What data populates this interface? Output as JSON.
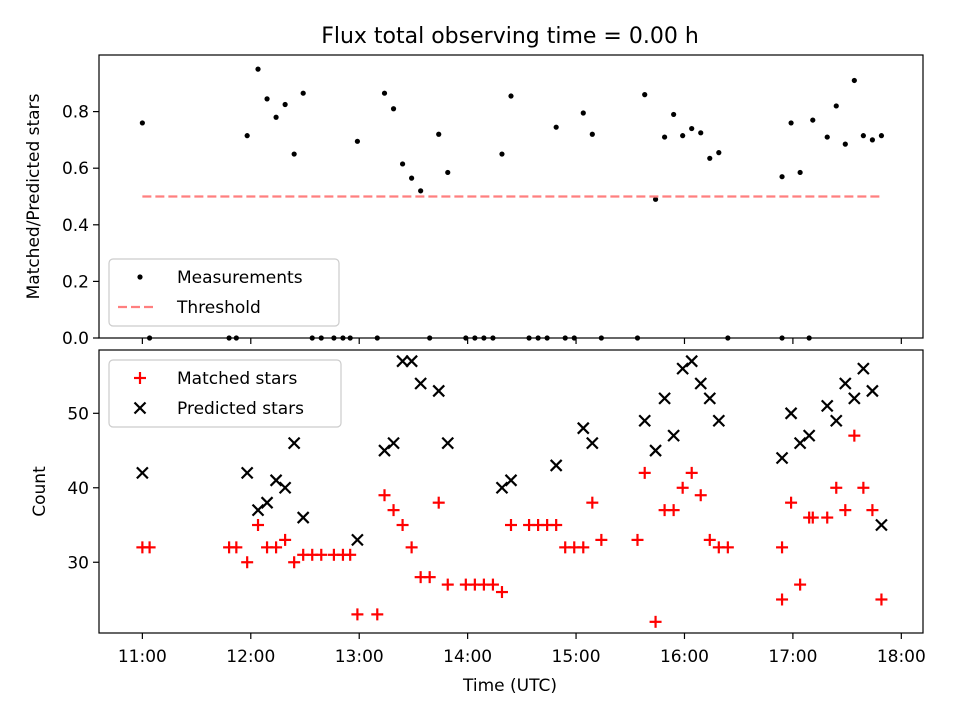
{
  "chart_data": {
    "title": "Flux total observing time = 0.00 h",
    "colors": {
      "measurements": "#000000",
      "threshold": "#ff7f7f",
      "matched": "#ff0000",
      "predicted": "#000000"
    },
    "x_ticks": [
      "11:00",
      "12:00",
      "13:00",
      "14:00",
      "15:00",
      "16:00",
      "17:00",
      "18:00"
    ],
    "xlabel": "Time (UTC)",
    "panels": [
      {
        "type": "scatter",
        "ylabel": "Matched/Predicted stars",
        "ylim": [
          0,
          1.0
        ],
        "y_ticks": [
          "0.0",
          "0.2",
          "0.4",
          "0.6",
          "0.8"
        ],
        "legend_position": "lower-left",
        "series": [
          {
            "name": "Measurements",
            "marker": "dot",
            "points": [
              [
                "11:00",
                0.76
              ],
              [
                "11:04",
                0.0
              ],
              [
                "11:48",
                0.0
              ],
              [
                "11:52",
                0.0
              ],
              [
                "11:58",
                0.715
              ],
              [
                "12:04",
                0.95
              ],
              [
                "12:09",
                0.845
              ],
              [
                "12:14",
                0.78
              ],
              [
                "12:19",
                0.825
              ],
              [
                "12:24",
                0.65
              ],
              [
                "12:29",
                0.865
              ],
              [
                "12:34",
                0.0
              ],
              [
                "12:39",
                0.0
              ],
              [
                "12:46",
                0.0
              ],
              [
                "12:51",
                0.0
              ],
              [
                "12:55",
                0.0
              ],
              [
                "12:59",
                0.695
              ],
              [
                "13:10",
                0.0
              ],
              [
                "13:14",
                0.865
              ],
              [
                "13:19",
                0.81
              ],
              [
                "13:24",
                0.615
              ],
              [
                "13:29",
                0.565
              ],
              [
                "13:34",
                0.52
              ],
              [
                "13:39",
                0.0
              ],
              [
                "13:44",
                0.72
              ],
              [
                "13:49",
                0.585
              ],
              [
                "13:59",
                0.0
              ],
              [
                "14:04",
                0.0
              ],
              [
                "14:09",
                0.0
              ],
              [
                "14:14",
                0.0
              ],
              [
                "14:19",
                0.65
              ],
              [
                "14:24",
                0.855
              ],
              [
                "14:34",
                0.0
              ],
              [
                "14:39",
                0.0
              ],
              [
                "14:44",
                0.0
              ],
              [
                "14:49",
                0.745
              ],
              [
                "14:54",
                0.0
              ],
              [
                "14:59",
                0.0
              ],
              [
                "15:04",
                0.795
              ],
              [
                "15:09",
                0.72
              ],
              [
                "15:14",
                0.0
              ],
              [
                "15:34",
                0.0
              ],
              [
                "15:38",
                0.86
              ],
              [
                "15:44",
                0.49
              ],
              [
                "15:49",
                0.71
              ],
              [
                "15:54",
                0.79
              ],
              [
                "15:59",
                0.715
              ],
              [
                "16:04",
                0.74
              ],
              [
                "16:09",
                0.725
              ],
              [
                "16:14",
                0.635
              ],
              [
                "16:19",
                0.655
              ],
              [
                "16:24",
                0.0
              ],
              [
                "16:54",
                0.0
              ],
              [
                "16:54",
                0.57
              ],
              [
                "16:59",
                0.76
              ],
              [
                "17:04",
                0.585
              ],
              [
                "17:09",
                0.0
              ],
              [
                "17:11",
                0.77
              ],
              [
                "17:19",
                0.71
              ],
              [
                "17:24",
                0.82
              ],
              [
                "17:29",
                0.685
              ],
              [
                "17:34",
                0.91
              ],
              [
                "17:39",
                0.715
              ],
              [
                "17:44",
                0.7
              ],
              [
                "17:49",
                0.715
              ]
            ]
          },
          {
            "name": "Threshold",
            "style": "dashed-line",
            "points": [
              [
                "11:00",
                0.5
              ],
              [
                "17:49",
                0.5
              ]
            ]
          }
        ]
      },
      {
        "type": "scatter",
        "ylabel": "Count",
        "ylim": [
          20.5,
          58.5
        ],
        "y_ticks": [
          "30",
          "40",
          "50"
        ],
        "legend_position": "upper-left",
        "series": [
          {
            "name": "Matched stars",
            "marker": "plus",
            "points": [
              [
                "11:00",
                32
              ],
              [
                "11:04",
                32
              ],
              [
                "11:48",
                32
              ],
              [
                "11:52",
                32
              ],
              [
                "11:58",
                30
              ],
              [
                "12:04",
                35
              ],
              [
                "12:09",
                32
              ],
              [
                "12:14",
                32
              ],
              [
                "12:19",
                33
              ],
              [
                "12:24",
                30
              ],
              [
                "12:29",
                31
              ],
              [
                "12:34",
                31
              ],
              [
                "12:39",
                31
              ],
              [
                "12:46",
                31
              ],
              [
                "12:51",
                31
              ],
              [
                "12:55",
                31
              ],
              [
                "12:59",
                23
              ],
              [
                "13:10",
                23
              ],
              [
                "13:14",
                39
              ],
              [
                "13:19",
                37
              ],
              [
                "13:24",
                35
              ],
              [
                "13:29",
                32
              ],
              [
                "13:34",
                28
              ],
              [
                "13:39",
                28
              ],
              [
                "13:44",
                38
              ],
              [
                "13:49",
                27
              ],
              [
                "13:59",
                27
              ],
              [
                "14:04",
                27
              ],
              [
                "14:09",
                27
              ],
              [
                "14:14",
                27
              ],
              [
                "14:19",
                26
              ],
              [
                "14:24",
                35
              ],
              [
                "14:34",
                35
              ],
              [
                "14:39",
                35
              ],
              [
                "14:44",
                35
              ],
              [
                "14:49",
                35
              ],
              [
                "14:54",
                32
              ],
              [
                "14:59",
                32
              ],
              [
                "15:04",
                32
              ],
              [
                "15:09",
                38
              ],
              [
                "15:14",
                33
              ],
              [
                "15:34",
                33
              ],
              [
                "15:38",
                42
              ],
              [
                "15:44",
                22
              ],
              [
                "15:49",
                37
              ],
              [
                "15:54",
                37
              ],
              [
                "15:59",
                40
              ],
              [
                "16:04",
                42
              ],
              [
                "16:09",
                39
              ],
              [
                "16:14",
                33
              ],
              [
                "16:19",
                32
              ],
              [
                "16:24",
                32
              ],
              [
                "16:54",
                32
              ],
              [
                "16:54",
                25
              ],
              [
                "16:59",
                38
              ],
              [
                "17:04",
                27
              ],
              [
                "17:09",
                36
              ],
              [
                "17:11",
                36
              ],
              [
                "17:19",
                36
              ],
              [
                "17:24",
                40
              ],
              [
                "17:29",
                37
              ],
              [
                "17:34",
                47
              ],
              [
                "17:39",
                40
              ],
              [
                "17:44",
                37
              ],
              [
                "17:49",
                25
              ]
            ]
          },
          {
            "name": "Predicted stars",
            "marker": "x",
            "points": [
              [
                "11:00",
                42
              ],
              [
                "11:58",
                42
              ],
              [
                "12:04",
                37
              ],
              [
                "12:09",
                38
              ],
              [
                "12:14",
                41
              ],
              [
                "12:19",
                40
              ],
              [
                "12:24",
                46
              ],
              [
                "12:29",
                36
              ],
              [
                "12:59",
                33
              ],
              [
                "13:14",
                45
              ],
              [
                "13:19",
                46
              ],
              [
                "13:24",
                57
              ],
              [
                "13:29",
                57
              ],
              [
                "13:34",
                54
              ],
              [
                "13:44",
                53
              ],
              [
                "13:49",
                46
              ],
              [
                "14:19",
                40
              ],
              [
                "14:24",
                41
              ],
              [
                "14:49",
                43
              ],
              [
                "15:04",
                48
              ],
              [
                "15:09",
                46
              ],
              [
                "15:38",
                49
              ],
              [
                "15:44",
                45
              ],
              [
                "15:49",
                52
              ],
              [
                "15:54",
                47
              ],
              [
                "15:59",
                56
              ],
              [
                "16:04",
                57
              ],
              [
                "16:09",
                54
              ],
              [
                "16:14",
                52
              ],
              [
                "16:19",
                49
              ],
              [
                "16:54",
                44
              ],
              [
                "16:59",
                50
              ],
              [
                "17:04",
                46
              ],
              [
                "17:09",
                47
              ],
              [
                "17:19",
                51
              ],
              [
                "17:24",
                49
              ],
              [
                "17:29",
                54
              ],
              [
                "17:34",
                52
              ],
              [
                "17:39",
                56
              ],
              [
                "17:44",
                53
              ],
              [
                "17:49",
                35
              ]
            ]
          }
        ]
      }
    ]
  }
}
